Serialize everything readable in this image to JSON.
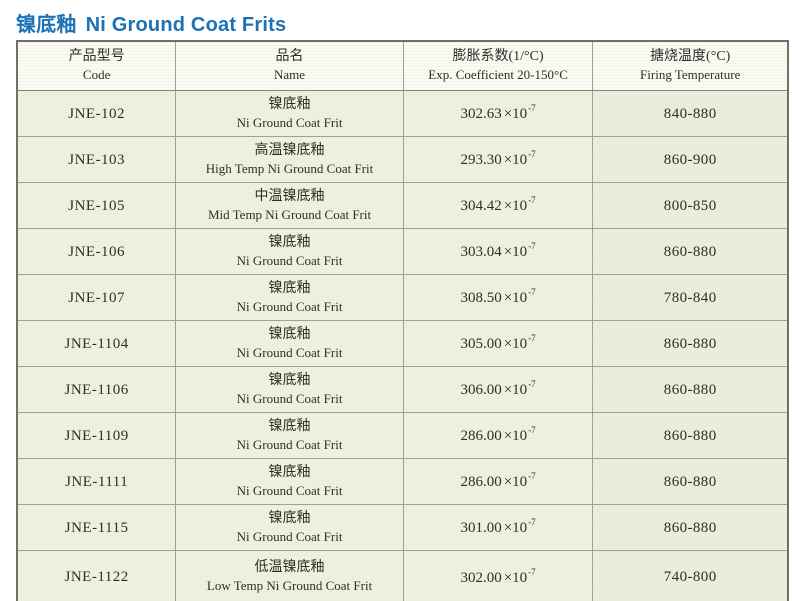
{
  "title": {
    "chinese": "镍底釉",
    "english": "Ni Ground Coat Frits"
  },
  "colors": {
    "title_blue": "#1b72b5",
    "cell_cream": "#f1f1e0",
    "cell_green_tint": "#ebeedd",
    "header_bg": "#fbfbf3",
    "grid_line": "#9ba398"
  },
  "table": {
    "headers": [
      {
        "cn": "产品型号",
        "en": "Code"
      },
      {
        "cn": "品名",
        "en": "Name"
      },
      {
        "cn": "膨胀系数(1/°C)",
        "en": "Exp. Coefficient 20-150°C"
      },
      {
        "cn": "搪烧温度(°C)",
        "en": "Firing Temperature"
      }
    ],
    "coeff_multiplier": "×10",
    "coeff_exponent": "-7",
    "rows": [
      {
        "code": "JNE-102",
        "name_cn": "镍底釉",
        "name_en": "Ni Ground Coat Frit",
        "coeff": "302.63",
        "firing": "840-880"
      },
      {
        "code": "JNE-103",
        "name_cn": "高温镍底釉",
        "name_en": "High Temp Ni Ground Coat Frit",
        "coeff": "293.30",
        "firing": "860-900"
      },
      {
        "code": "JNE-105",
        "name_cn": "中温镍底釉",
        "name_en": "Mid Temp Ni Ground Coat Frit",
        "coeff": "304.42",
        "firing": "800-850"
      },
      {
        "code": "JNE-106",
        "name_cn": "镍底釉",
        "name_en": "Ni Ground Coat Frit",
        "coeff": "303.04",
        "firing": "860-880"
      },
      {
        "code": "JNE-107",
        "name_cn": "镍底釉",
        "name_en": "Ni Ground Coat Frit",
        "coeff": "308.50",
        "firing": "780-840"
      },
      {
        "code": "JNE-1104",
        "name_cn": "镍底釉",
        "name_en": "Ni Ground Coat Frit",
        "coeff": "305.00",
        "firing": "860-880"
      },
      {
        "code": "JNE-1106",
        "name_cn": "镍底釉",
        "name_en": "Ni Ground Coat Frit",
        "coeff": "306.00",
        "firing": "860-880"
      },
      {
        "code": "JNE-1109",
        "name_cn": "镍底釉",
        "name_en": "Ni Ground Coat Frit",
        "coeff": "286.00",
        "firing": "860-880"
      },
      {
        "code": "JNE-1111",
        "name_cn": "镍底釉",
        "name_en": "Ni Ground Coat Frit",
        "coeff": "286.00",
        "firing": "860-880"
      },
      {
        "code": "JNE-1115",
        "name_cn": "镍底釉",
        "name_en": "Ni Ground Coat Frit",
        "coeff": "301.00",
        "firing": "860-880"
      },
      {
        "code": "JNE-1122",
        "name_cn": "低温镍底釉",
        "name_en": "Low Temp Ni Ground Coat Frit",
        "coeff": "302.00",
        "firing": "740-800"
      }
    ]
  }
}
